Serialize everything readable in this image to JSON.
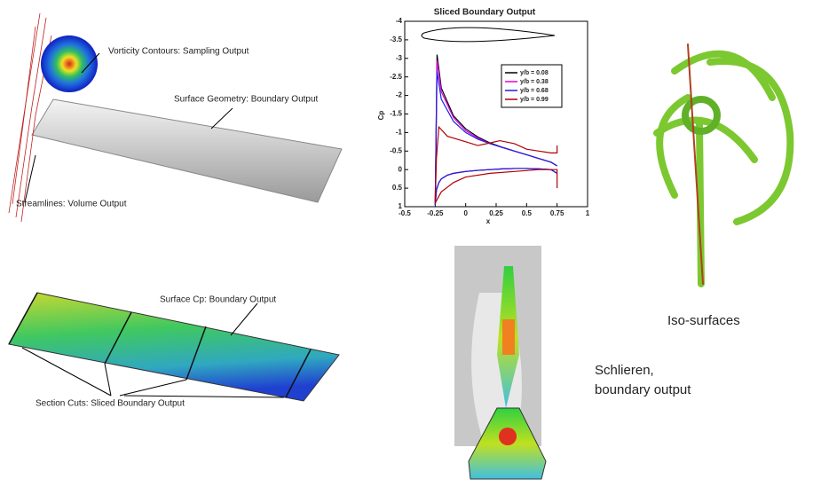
{
  "chart_data": {
    "type": "line",
    "title": "Sliced Boundary Output",
    "x_label": "x",
    "y_label": "Cp",
    "xlim": [
      -0.5,
      1
    ],
    "xticks": [
      -0.5,
      -0.25,
      0,
      0.25,
      0.5,
      0.75,
      1
    ],
    "ylim": [
      1,
      -4
    ],
    "yticks": [
      1,
      0.5,
      0,
      -0.5,
      -1,
      -1.5,
      -2,
      -2.5,
      -3,
      -3.5,
      -4
    ],
    "legend": "upper right",
    "series": [
      {
        "name": "y/b = 0.08",
        "color": "#000000",
        "x": [
          0.75,
          0.7,
          0.6,
          0.5,
          0.4,
          0.3,
          0.2,
          0.1,
          0,
          -0.1,
          -0.2,
          -0.235,
          -0.25,
          -0.24,
          -0.22,
          -0.2,
          -0.15,
          -0.1,
          0,
          0.1,
          0.2,
          0.3,
          0.4,
          0.5,
          0.6,
          0.7,
          0.75
        ],
        "values": [
          -0.1,
          -0.2,
          -0.3,
          -0.4,
          -0.5,
          -0.6,
          -0.72,
          -0.88,
          -1.1,
          -1.45,
          -2.2,
          -3.1,
          0.95,
          0.55,
          0.35,
          0.25,
          0.15,
          0.1,
          0.05,
          0.02,
          0,
          -0.02,
          -0.03,
          -0.03,
          -0.02,
          0,
          0.1
        ]
      },
      {
        "name": "y/b = 0.38",
        "color": "#e000e0",
        "x": [
          0.75,
          0.7,
          0.6,
          0.5,
          0.4,
          0.3,
          0.2,
          0.1,
          0,
          -0.1,
          -0.2,
          -0.235,
          -0.25,
          -0.24,
          -0.22,
          -0.2,
          -0.15,
          -0.1,
          0,
          0.1,
          0.2,
          0.3,
          0.4,
          0.5,
          0.6,
          0.7,
          0.75
        ],
        "values": [
          -0.1,
          -0.2,
          -0.3,
          -0.4,
          -0.5,
          -0.6,
          -0.7,
          -0.85,
          -1.05,
          -1.4,
          -2.1,
          -2.95,
          0.95,
          0.55,
          0.35,
          0.25,
          0.15,
          0.1,
          0.05,
          0.02,
          0,
          -0.02,
          -0.03,
          -0.03,
          -0.02,
          0,
          0.1
        ]
      },
      {
        "name": "y/b = 0.68",
        "color": "#2020e0",
        "x": [
          0.75,
          0.7,
          0.6,
          0.5,
          0.4,
          0.3,
          0.2,
          0.1,
          0,
          -0.1,
          -0.2,
          -0.235,
          -0.25,
          -0.24,
          -0.22,
          -0.2,
          -0.15,
          -0.1,
          0,
          0.1,
          0.2,
          0.3,
          0.4,
          0.5,
          0.6,
          0.7,
          0.75
        ],
        "values": [
          -0.1,
          -0.2,
          -0.3,
          -0.4,
          -0.5,
          -0.6,
          -0.7,
          -0.82,
          -1.0,
          -1.3,
          -1.9,
          -2.65,
          0.95,
          0.55,
          0.35,
          0.25,
          0.15,
          0.1,
          0.05,
          0.02,
          0,
          -0.02,
          -0.03,
          -0.03,
          -0.02,
          0,
          0.1
        ]
      },
      {
        "name": "y/b = 0.99",
        "color": "#b00000",
        "x": [
          0.75,
          0.75,
          0.7,
          0.6,
          0.5,
          0.4,
          0.28,
          0.2,
          0.1,
          0,
          -0.15,
          -0.22,
          -0.24,
          -0.25,
          -0.2,
          -0.1,
          0,
          0.2,
          0.4,
          0.6,
          0.75,
          0.75
        ],
        "values": [
          -0.65,
          -0.45,
          -0.45,
          -0.5,
          -0.55,
          -0.7,
          -0.78,
          -0.72,
          -0.65,
          -0.75,
          -0.9,
          -1.15,
          -0.3,
          0.9,
          0.6,
          0.35,
          0.2,
          0.1,
          0.05,
          0,
          0,
          0.5
        ]
      }
    ]
  },
  "labels": {
    "vorticity": "Vorticity Contours: Sampling Output",
    "surface_geometry": "Surface Geometry: Boundary Output",
    "streamlines": "Streamlines: Volume Output",
    "surface_cp": "Surface Cp: Boundary Output",
    "section_cuts": "Section Cuts: Sliced Boundary Output",
    "iso": "Iso-surfaces",
    "schlieren_1": "Schlieren,",
    "schlieren_2": "boundary output"
  }
}
